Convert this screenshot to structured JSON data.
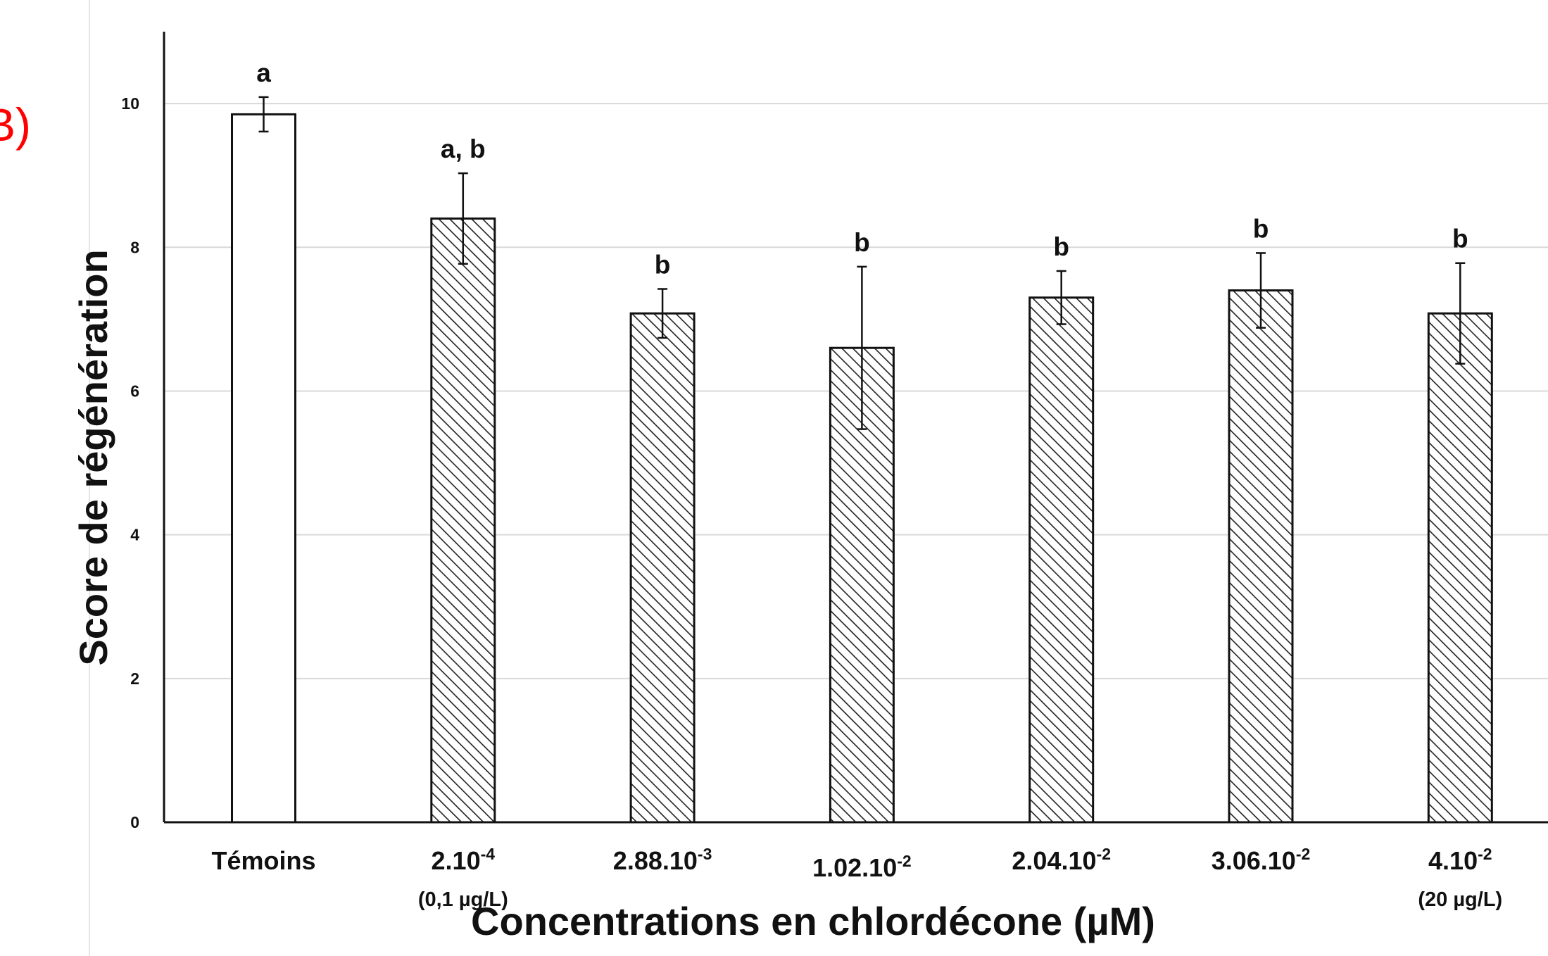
{
  "chart_data": {
    "type": "bar",
    "panel_label": "B)",
    "x_label": "Concentrations en chlordécone (µM)",
    "y_label": "Score de régénération",
    "categories": [
      "Témoins",
      "2.10",
      "2.88.10",
      "1.02.10",
      "2.04.10",
      "3.06.10",
      "4.10"
    ],
    "category_superscripts": [
      null,
      "-4",
      "-3",
      "-2",
      "-2",
      "-2",
      "-2"
    ],
    "category_notes": [
      null,
      "(0,1 µg/L)",
      null,
      null,
      null,
      null,
      "(20 µg/L)"
    ],
    "values": [
      9.85,
      8.4,
      7.08,
      6.6,
      7.3,
      7.4,
      7.08
    ],
    "errors": [
      0.24,
      0.63,
      0.34,
      1.13,
      0.37,
      0.52,
      0.7
    ],
    "hatched": [
      false,
      true,
      true,
      true,
      true,
      true,
      true
    ],
    "annotations": [
      "a",
      "a, b",
      "b",
      "b",
      "b",
      "b",
      "b"
    ],
    "ylim": [
      0,
      11
    ],
    "yticks": [
      0,
      2,
      4,
      6,
      8,
      10
    ],
    "grid": true
  }
}
